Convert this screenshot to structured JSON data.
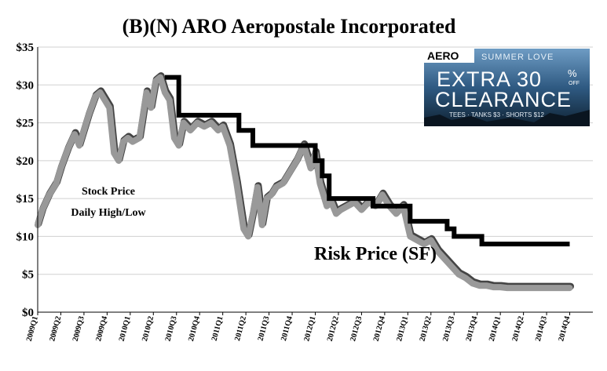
{
  "chart_data": {
    "type": "line",
    "title": "(B)(N) ARO Aeropostale Incorporated",
    "xlabel": "",
    "ylabel": "",
    "categories": [
      "2009Q1",
      "2009Q2",
      "2009Q3",
      "2009Q4",
      "2010Q1",
      "2010Q2",
      "2010Q3",
      "2010Q4",
      "2011Q1",
      "2011Q2",
      "2011Q3",
      "2011Q4",
      "2012Q1",
      "2012Q2",
      "2012Q3",
      "2012Q4",
      "2013Q1",
      "2013Q2",
      "2013Q3",
      "2013Q4",
      "2014Q1",
      "2014Q2",
      "2014Q3",
      "2014Q4"
    ],
    "ylim": [
      0,
      35
    ],
    "yticks": [
      0,
      5,
      10,
      15,
      20,
      25,
      30,
      35
    ],
    "ytick_labels": [
      "$0",
      "$5",
      "$10",
      "$15",
      "$20",
      "$25",
      "$30",
      "$35"
    ],
    "grid": true,
    "series": [
      {
        "name": "Stock Price Daily High/Low",
        "color": "#999999",
        "x": [
          0.0,
          0.2,
          0.5,
          0.8,
          1.0,
          1.3,
          1.6,
          1.8,
          2.0,
          2.2,
          2.5,
          2.7,
          2.9,
          3.1,
          3.3,
          3.5,
          3.7,
          3.9,
          4.1,
          4.4,
          4.7,
          4.9,
          5.1,
          5.3,
          5.5,
          5.7,
          5.9,
          6.1,
          6.3,
          6.6,
          6.9,
          7.2,
          7.5,
          7.8,
          8.0,
          8.3,
          8.6,
          8.9,
          9.1,
          9.3,
          9.5,
          9.7,
          9.9,
          10.1,
          10.3,
          10.6,
          10.9,
          11.2,
          11.5,
          11.8,
          12.0,
          12.2,
          12.5,
          12.7,
          12.9,
          13.1,
          13.4,
          13.7,
          14.0,
          14.3,
          14.6,
          14.9,
          15.2,
          15.5,
          15.8,
          16.1,
          16.4,
          16.7,
          17.0,
          17.3,
          17.6,
          17.9,
          18.2,
          18.5,
          18.8,
          19.1,
          19.4,
          19.7,
          20.0,
          20.3,
          20.6,
          20.9,
          21.2,
          21.5,
          21.8,
          22.1,
          22.4,
          22.7,
          23.0
        ],
        "y": [
          11.5,
          13.5,
          15.5,
          17.0,
          19.0,
          21.5,
          23.5,
          22.0,
          24.0,
          26.0,
          28.5,
          29.0,
          28.0,
          27.0,
          21.0,
          20.0,
          22.5,
          23.0,
          22.5,
          23.0,
          29.0,
          27.0,
          30.5,
          31.0,
          29.0,
          28.0,
          23.0,
          22.0,
          25.0,
          24.0,
          25.0,
          24.5,
          25.0,
          24.0,
          24.5,
          22.0,
          17.0,
          11.0,
          10.0,
          13.0,
          16.5,
          11.5,
          15.0,
          15.5,
          16.5,
          17.0,
          18.5,
          20.0,
          22.0,
          19.0,
          21.0,
          17.0,
          14.0,
          14.5,
          13.0,
          13.5,
          14.0,
          14.5,
          13.5,
          14.5,
          14.0,
          15.5,
          14.0,
          13.0,
          14.0,
          10.0,
          9.5,
          9.0,
          9.5,
          8.0,
          7.0,
          6.0,
          5.0,
          4.5,
          3.8,
          3.5,
          3.5,
          3.3,
          3.3,
          3.2,
          3.2,
          3.2,
          3.2,
          3.2,
          3.2,
          3.2,
          3.2,
          3.2,
          3.2
        ]
      },
      {
        "name": "Risk Price (SF)",
        "color": "#000000",
        "step": true,
        "x": [
          5.5,
          6.1,
          6.1,
          8.7,
          8.7,
          9.3,
          9.3,
          12.0,
          12.0,
          12.3,
          12.3,
          12.6,
          12.6,
          14.5,
          14.5,
          16.1,
          16.1,
          17.7,
          17.7,
          18.0,
          18.0,
          19.2,
          19.2,
          20.5,
          20.5,
          23.0
        ],
        "y": [
          31,
          31,
          26,
          26,
          24,
          24,
          22,
          22,
          20,
          20,
          18,
          18,
          15,
          15,
          14,
          14,
          12,
          12,
          11,
          11,
          10,
          10,
          9,
          9,
          9,
          9
        ]
      }
    ],
    "annotations": [
      {
        "text": "Stock Price"
      },
      {
        "text": "Daily High/Low"
      },
      {
        "text": "Risk Price (SF)"
      }
    ]
  },
  "ad": {
    "brand": "AERO",
    "tagline": "SUMMER LOVE",
    "headline_1": "EXTRA 30",
    "percent": "%",
    "off": "OFF",
    "headline_2": "CLEARANCE",
    "subline": "TEES · TANKS $3 · SHORTS $12",
    "colors": {
      "sky": "#4a7ca8",
      "sea": "#1e3e5c",
      "dark": "#0c1a28"
    }
  }
}
